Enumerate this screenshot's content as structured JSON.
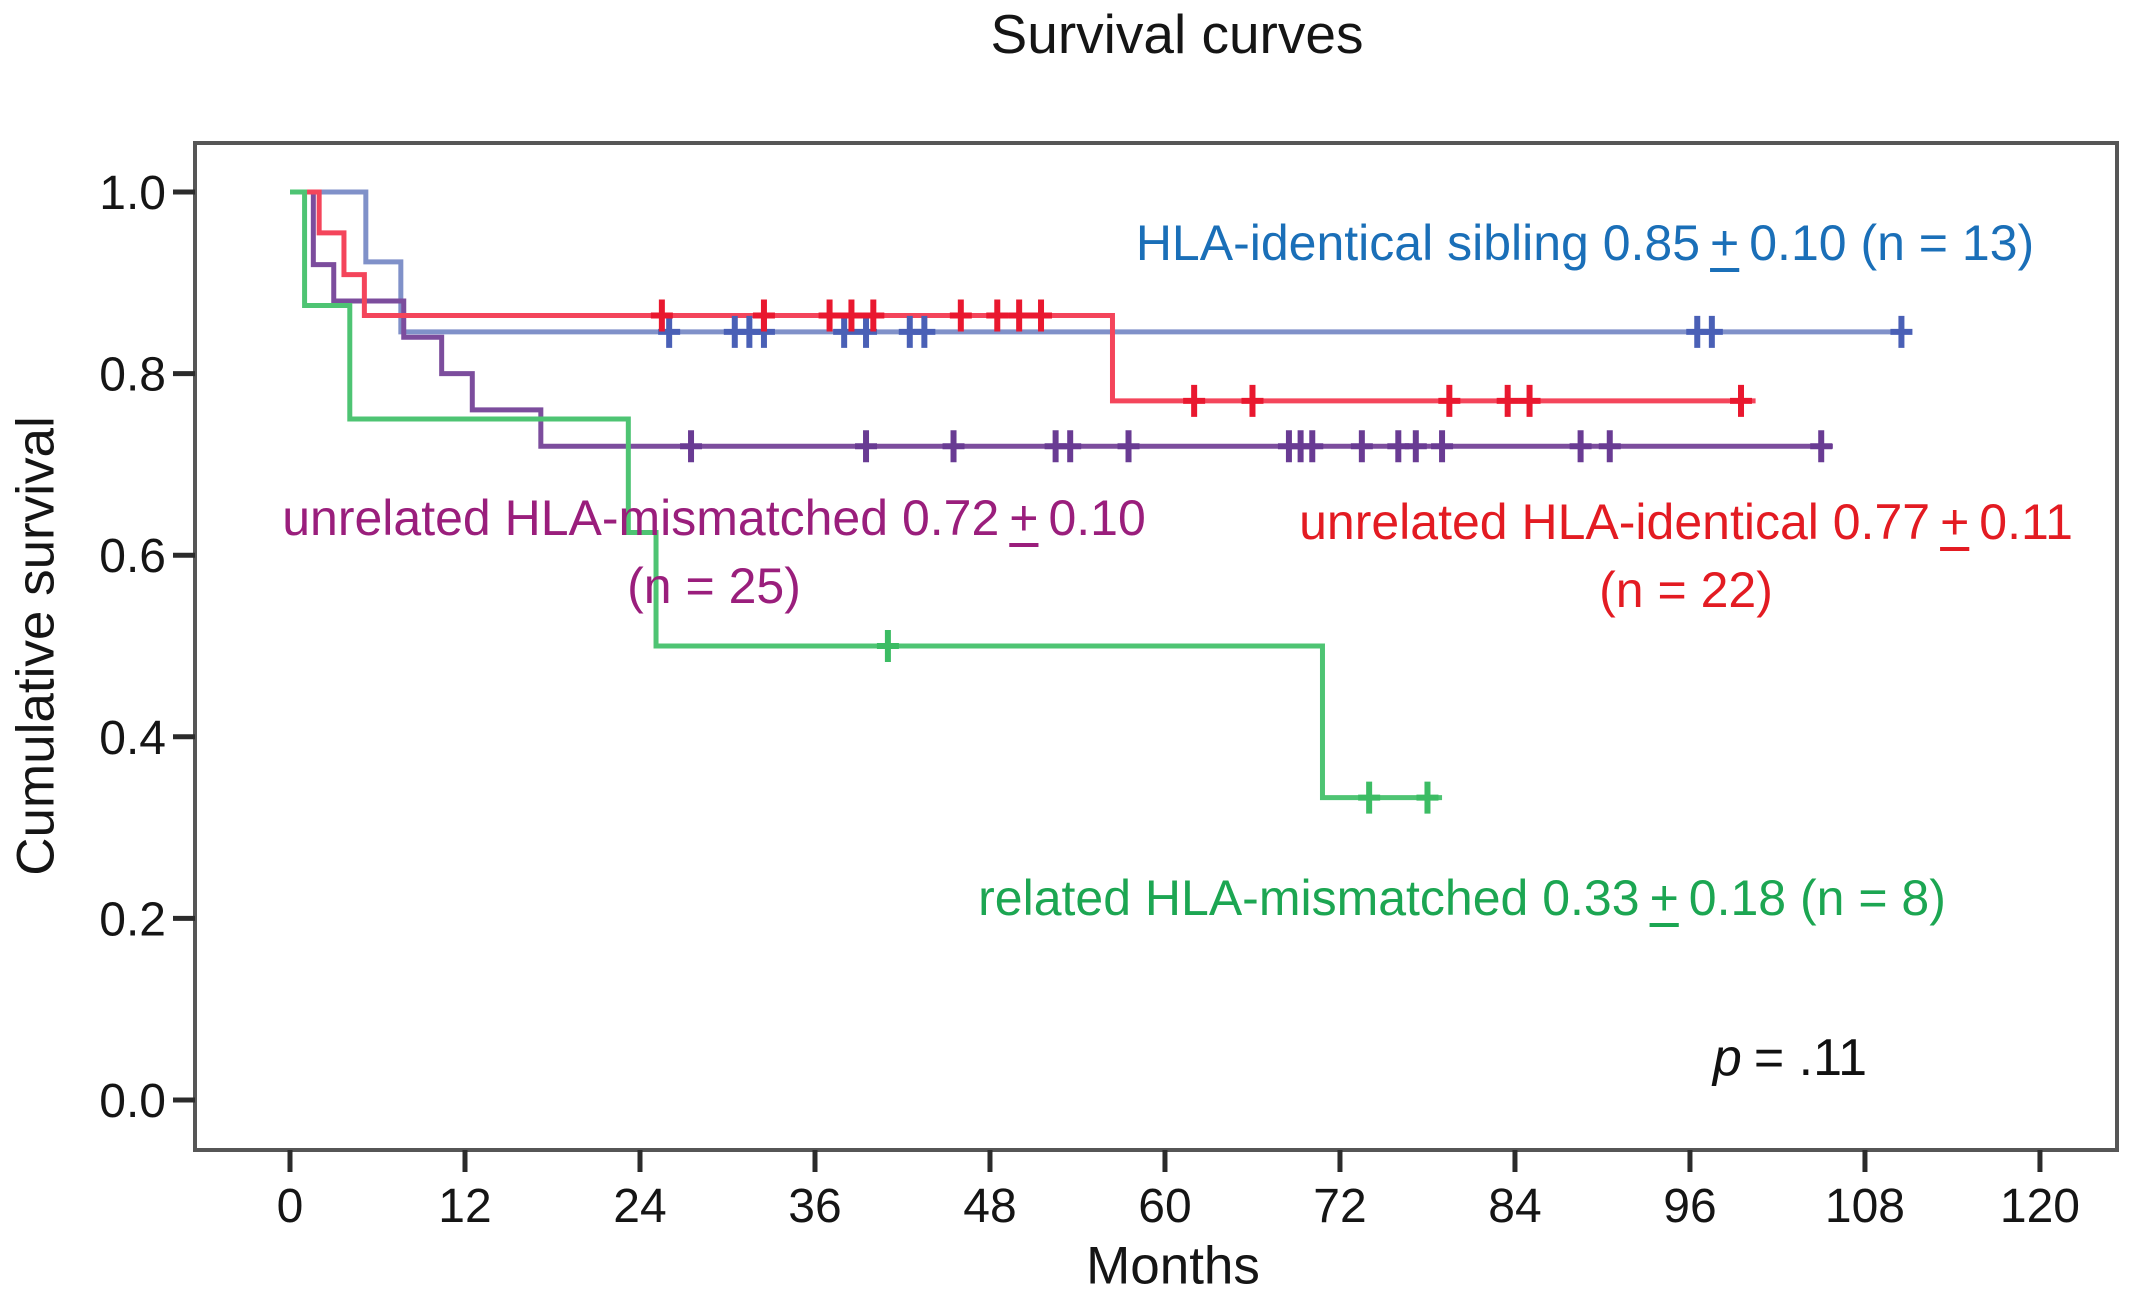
{
  "title": "Survival curves",
  "axes": {
    "x_label": "Months",
    "y_label": "Cumulative survival"
  },
  "annotations": {
    "sibling": {
      "series": "sibling",
      "text": "HLA-identical sibling 0.85",
      "pm": "+",
      "rest": "0.10 (n = 13)",
      "line2": ""
    },
    "unrel_mm": {
      "series": "unrel_mm",
      "text": "unrelated HLA-mismatched  0.72",
      "pm": "+",
      "rest": "0.10",
      "line2": "(n = 25)"
    },
    "unrel_id": {
      "series": "unrel_id",
      "text": "unrelated HLA-identical 0.77",
      "pm": "+",
      "rest": "0.11",
      "line2": "(n = 22)"
    },
    "rel_mm": {
      "series": "rel_mm",
      "text": "related HLA-mismatched 0.33",
      "pm": "+",
      "rest": "0.18 (n = 8)",
      "line2": ""
    },
    "p": {
      "italic": "p",
      "rest": "= .11"
    }
  },
  "chart_data": {
    "type": "line",
    "subtype": "kaplan-meier-step",
    "title": "Survival curves",
    "xlabel": "Months",
    "ylabel": "Cumulative survival",
    "xlim": [
      0,
      120
    ],
    "ylim": [
      0.0,
      1.0
    ],
    "grid": false,
    "x_ticks": [
      0,
      12,
      24,
      36,
      48,
      60,
      72,
      84,
      96,
      108,
      120
    ],
    "y_ticks": [
      1.0,
      0.8,
      0.6,
      0.4,
      0.2,
      0.0
    ],
    "y_tick_labels": [
      "1.0",
      "0.8",
      "0.6",
      "0.4",
      "0.2",
      "0.0"
    ],
    "frame_color": "#565656",
    "tick_color": "#2b2b2b",
    "p_value": "p = .11",
    "series": [
      {
        "id": "sibling",
        "name": "HLA-identical sibling",
        "n": 13,
        "estimate": "0.85 ± 0.10",
        "line_color": "#8091c9",
        "censor_color": "#4a60b6",
        "text_color": "#1a6fb8",
        "steps": [
          [
            0,
            1.0
          ],
          [
            5.2,
            0.923
          ],
          [
            7.6,
            0.846
          ]
        ],
        "end": 111,
        "censors": [
          [
            26,
            0.846
          ],
          [
            30.5,
            0.846
          ],
          [
            31.5,
            0.846
          ],
          [
            32.5,
            0.846
          ],
          [
            38,
            0.846
          ],
          [
            39.5,
            0.846
          ],
          [
            42.5,
            0.846
          ],
          [
            43.5,
            0.846
          ],
          [
            96.5,
            0.846
          ],
          [
            97.5,
            0.846
          ],
          [
            110.5,
            0.846
          ]
        ]
      },
      {
        "id": "unrel_mm",
        "name": "unrelated HLA-mismatched",
        "n": 25,
        "estimate": "0.72 ± 0.10",
        "line_color": "#7c4d9d",
        "censor_color": "#693b93",
        "text_color": "#9a1e7c",
        "steps": [
          [
            0,
            1.0
          ],
          [
            1.6,
            0.92
          ],
          [
            3.0,
            0.88
          ],
          [
            7.8,
            0.84
          ],
          [
            10.4,
            0.8
          ],
          [
            12.5,
            0.76
          ],
          [
            17.2,
            0.72
          ]
        ],
        "end": 105.8,
        "censors": [
          [
            27.5,
            0.72
          ],
          [
            39.5,
            0.72
          ],
          [
            45.5,
            0.72
          ],
          [
            52.5,
            0.72
          ],
          [
            53.5,
            0.72
          ],
          [
            57.5,
            0.72
          ],
          [
            68.5,
            0.72
          ],
          [
            69.3,
            0.72
          ],
          [
            70.1,
            0.72
          ],
          [
            73.5,
            0.72
          ],
          [
            76,
            0.72
          ],
          [
            77.2,
            0.72
          ],
          [
            79,
            0.72
          ],
          [
            88.5,
            0.72
          ],
          [
            90.5,
            0.72
          ],
          [
            105,
            0.72
          ]
        ]
      },
      {
        "id": "unrel_id",
        "name": "unrelated HLA-identical",
        "n": 22,
        "estimate": "0.77 ± 0.11",
        "line_color": "#f4455b",
        "censor_color": "#e9182f",
        "text_color": "#e31b22",
        "steps": [
          [
            0,
            1.0
          ],
          [
            2.0,
            0.955
          ],
          [
            3.7,
            0.909
          ],
          [
            5.1,
            0.864
          ],
          [
            56.4,
            0.77
          ]
        ],
        "end": 100.5,
        "censors": [
          [
            25.5,
            0.864
          ],
          [
            32.5,
            0.864
          ],
          [
            37,
            0.864
          ],
          [
            38.5,
            0.864
          ],
          [
            40,
            0.864
          ],
          [
            46,
            0.864
          ],
          [
            48.5,
            0.864
          ],
          [
            50,
            0.864
          ],
          [
            51.5,
            0.864
          ],
          [
            62,
            0.77
          ],
          [
            66,
            0.77
          ],
          [
            79.5,
            0.77
          ],
          [
            83.5,
            0.77
          ],
          [
            85,
            0.77
          ],
          [
            99.5,
            0.77
          ]
        ]
      },
      {
        "id": "rel_mm",
        "name": "related HLA-mismatched",
        "n": 8,
        "estimate": "0.33 ± 0.18",
        "line_color": "#4ec473",
        "censor_color": "#3cbc64",
        "text_color": "#1ca652",
        "steps": [
          [
            0,
            1.0
          ],
          [
            1.0,
            0.875
          ],
          [
            4.1,
            0.75
          ],
          [
            23.2,
            0.625
          ],
          [
            25.1,
            0.5
          ],
          [
            70.8,
            0.333
          ]
        ],
        "end": 79,
        "censors": [
          [
            41,
            0.5
          ],
          [
            74,
            0.333
          ],
          [
            78,
            0.333
          ]
        ]
      }
    ]
  }
}
